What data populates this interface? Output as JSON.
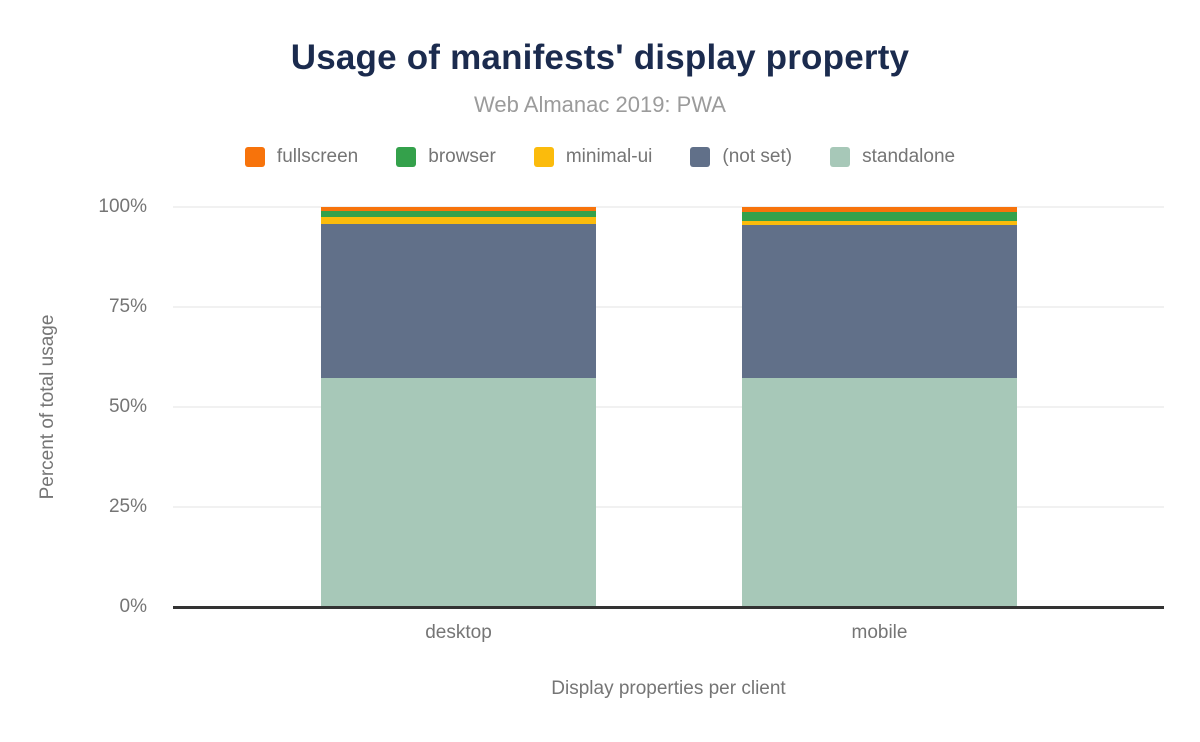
{
  "title": "Usage of manifests' display property",
  "subtitle": "Web Almanac 2019: PWA",
  "colors": {
    "title_text": "#1b2b4e",
    "subtitle_text": "#9b9b9b",
    "axis_text": "#757575",
    "gridline": "#f1f1f1",
    "axis_line": "#333333",
    "fullscreen": "#f7730b",
    "browser": "#34a14b",
    "minimal_ui": "#fbbb0c",
    "not_set": "#617089",
    "standalone": "#a7c8b8"
  },
  "chart_data": {
    "type": "bar",
    "stacked": true,
    "title": "Usage of manifests' display property",
    "subtitle": "Web Almanac 2019: PWA",
    "xlabel": "Display properties per client",
    "ylabel": "Percent of total usage",
    "categories": [
      "desktop",
      "mobile"
    ],
    "series": [
      {
        "name": "fullscreen",
        "color": "#f7730b",
        "values": [
          1.1,
          1.2
        ]
      },
      {
        "name": "browser",
        "color": "#34a14b",
        "values": [
          1.5,
          2.2
        ]
      },
      {
        "name": "minimal-ui",
        "color": "#fbbb0c",
        "values": [
          1.6,
          1.2
        ]
      },
      {
        "name": "(not set)",
        "color": "#617089",
        "values": [
          38.6,
          38.2
        ]
      },
      {
        "name": "standalone",
        "color": "#a7c8b8",
        "values": [
          57.2,
          57.2
        ]
      }
    ],
    "stack_order_top_to_bottom": [
      "fullscreen",
      "browser",
      "minimal-ui",
      "(not set)",
      "standalone"
    ],
    "yticks": [
      "0%",
      "25%",
      "50%",
      "75%",
      "100%"
    ],
    "ylim": [
      0,
      100
    ],
    "grid": true,
    "legend_position": "top"
  }
}
